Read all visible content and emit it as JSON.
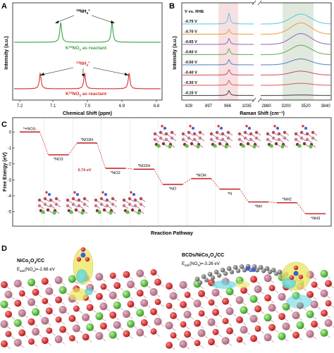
{
  "panels": {
    "A": {
      "letter": "A",
      "ylabel": "Intensity (a.u.)",
      "xlabel": "Chemical Shift (ppm)",
      "xticks": [
        "7.2",
        "7.1",
        "7.0",
        "6.9",
        "6.8"
      ],
      "label15": "15NH4+",
      "label15_parts": {
        "pre": "",
        "sup1": "15",
        "base": "NH",
        "sub": "4",
        "sup2": "+"
      },
      "caption15": "K15NO3 as reactant",
      "caption15_parts": {
        "a": "K",
        "sup": "15",
        "b": "NO",
        "sub": "3",
        "c": " as reactant"
      },
      "label14": "14NH4+",
      "label14_parts": {
        "sup1": "14",
        "base": "NH",
        "sub": "4",
        "sup2": "+"
      },
      "caption14": "K14NO3 as reactant",
      "caption14_parts": {
        "a": "K",
        "sup": "14",
        "b": "NO",
        "sub": "3",
        "c": " as reactant"
      },
      "colors": {
        "n15": "#3aa14a",
        "n14": "#d32f2f"
      }
    },
    "B": {
      "letter": "B",
      "ylabel": "Intensity (a.u.)",
      "xlabel": "Raman Shift (cm⁻¹)",
      "legend_title": "V vs. RHE",
      "potentials": [
        "-0.75 V",
        "-0.70 V",
        "-0.65 V",
        "-0.60 V",
        "-0.50 V",
        "-0.40 V",
        "-0.30 V",
        "-0.15 V"
      ],
      "colors": [
        "#4fc3d9",
        "#e69a2e",
        "#8e5bb5",
        "#5aa642",
        "#4a78c2",
        "#c9425a",
        "#d9534f",
        "#333333"
      ],
      "xticks_left": [
        "828",
        "897",
        "966",
        "1035"
      ],
      "xticks_right": [
        "2880",
        "3200",
        "3520",
        "3840"
      ]
    },
    "C": {
      "letter": "C",
      "ylabel": "Free Energy (eV)",
      "xlabel": "Reaction Pathway",
      "yticks": [
        "0",
        "-1",
        "-2",
        "-3",
        "-4",
        "-5"
      ],
      "gap_label": "0.74 eV"
    },
    "D": {
      "letter": "D",
      "left_title": "NiCo2O4/CC",
      "left_title_parts": {
        "a": "NiCo",
        "sub1": "2",
        "b": "O",
        "sub2": "4",
        "c": "/CC"
      },
      "left_energy": "Eads(NO3)=-2.68 eV",
      "left_energy_parts": {
        "a": "E",
        "sub1": "ads",
        "b": "(NO",
        "sub2": "3",
        "c": ")=-2.68 eV"
      },
      "right_title": "BCDs/NiCo2O4/CC",
      "right_title_parts": {
        "a": "BCDs/NiCo",
        "sub1": "2",
        "b": "O",
        "sub2": "4",
        "c": "/CC"
      },
      "right_energy": "Eads(NO3)=-3.26 eV",
      "right_energy_parts": {
        "a": "E",
        "sub1": "ads",
        "b": "(NO",
        "sub2": "3",
        "c": ")=-3.26 eV"
      }
    }
  },
  "chart_data": [
    {
      "type": "line",
      "panel": "A",
      "xlabel": "Chemical Shift (ppm)",
      "ylabel": "Intensity (a.u.)",
      "xlim": [
        7.2,
        6.8
      ],
      "series": [
        {
          "name": "K15NO3 as reactant",
          "peaks_ppm": [
            7.08,
            6.93
          ]
        },
        {
          "name": "K14NO3 as reactant",
          "peaks_ppm": [
            7.14,
            7.01,
            6.88
          ]
        }
      ]
    },
    {
      "type": "line",
      "panel": "B",
      "xlabel": "Raman Shift (cm-1)",
      "ylabel": "Intensity (a.u.)",
      "xticks": [
        828,
        897,
        966,
        1035,
        2880,
        3200,
        3520,
        3840
      ],
      "axis_break": true,
      "highlight_bands": [
        [
          940,
          1000
        ],
        [
          3150,
          3650
        ]
      ],
      "sharp_peak_cm": 980,
      "broad_band_center_cm": 3420,
      "series": [
        {
          "name": "-0.75 V",
          "peak_height": 1.0,
          "band_height": 1.0
        },
        {
          "name": "-0.70 V",
          "peak_height": 0.45,
          "band_height": 1.15
        },
        {
          "name": "-0.65 V",
          "peak_height": 0.55,
          "band_height": 1.1
        },
        {
          "name": "-0.60 V",
          "peak_height": 0.55,
          "band_height": 0.95
        },
        {
          "name": "-0.50 V",
          "peak_height": 0.5,
          "band_height": 0.6
        },
        {
          "name": "-0.40 V",
          "peak_height": 0.5,
          "band_height": 0.4
        },
        {
          "name": "-0.30 V",
          "peak_height": 0.45,
          "band_height": 0.2
        },
        {
          "name": "-0.15 V",
          "peak_height": 0.45,
          "band_height": 0.05
        }
      ]
    },
    {
      "type": "line",
      "panel": "C",
      "xlabel": "Reaction Pathway",
      "ylabel": "Free Energy (eV)",
      "ylim": [
        -5.5,
        0.5
      ],
      "steps": [
        {
          "label": "*+NO3-",
          "G": 0.0
        },
        {
          "label": "*NO3",
          "G": -1.43
        },
        {
          "label": "*NO2H",
          "G": -0.69
        },
        {
          "label": "*NO2",
          "G": -2.27
        },
        {
          "label": "*NO2H",
          "G": -2.33
        },
        {
          "label": "*NO",
          "G": -3.28
        },
        {
          "label": "*NOH",
          "G": -2.92
        },
        {
          "label": "*N",
          "G": -3.58
        },
        {
          "label": "*NH",
          "G": -4.38
        },
        {
          "label": "*NH2",
          "G": -4.43
        },
        {
          "label": "*NH3",
          "G": -5.12
        }
      ]
    }
  ]
}
